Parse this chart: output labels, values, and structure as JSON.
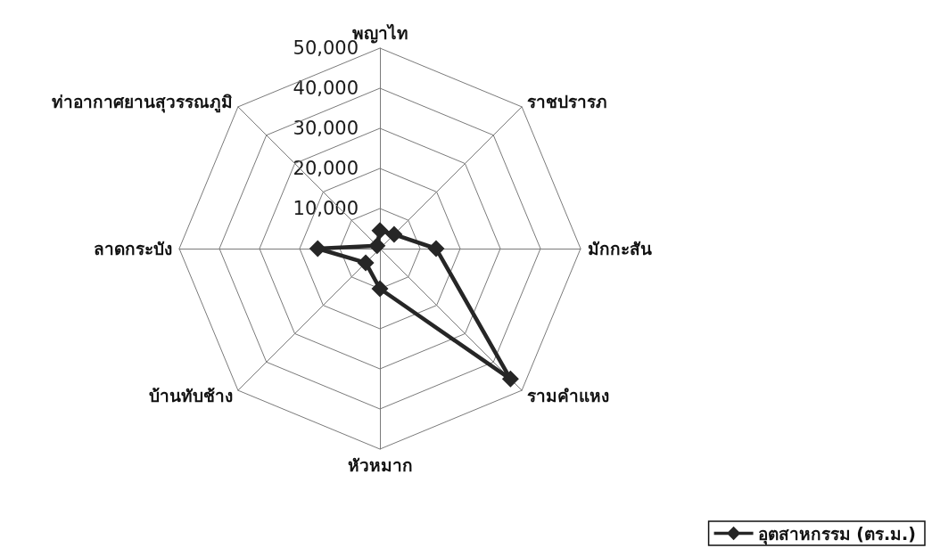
{
  "chart_data": {
    "type": "radar",
    "categories": [
      "พญาไท",
      "ราชปรารภ",
      "มักกะสัน",
      "รามคำแหง",
      "หัวหมาก",
      "บ้านทับช้าง",
      "ลาดกระบัง",
      "ท่าอากาศยานสุวรรณภูมิ"
    ],
    "series": [
      {
        "name": "อุตสาหกรรม (ตร.ม.)",
        "color": "#262626",
        "values": [
          4500,
          5000,
          14000,
          46000,
          10000,
          5000,
          15500,
          1000
        ]
      }
    ],
    "ylim": [
      0,
      50000
    ],
    "yticks": [
      {
        "value": 10000,
        "label": "10,000"
      },
      {
        "value": 20000,
        "label": "20,000"
      },
      {
        "value": 30000,
        "label": "30,000"
      },
      {
        "value": 40000,
        "label": "40,000"
      },
      {
        "value": 50000,
        "label": "50,000"
      }
    ],
    "grid": true,
    "legend": "bottom right",
    "marker": "diamond",
    "line_style": "solid"
  }
}
